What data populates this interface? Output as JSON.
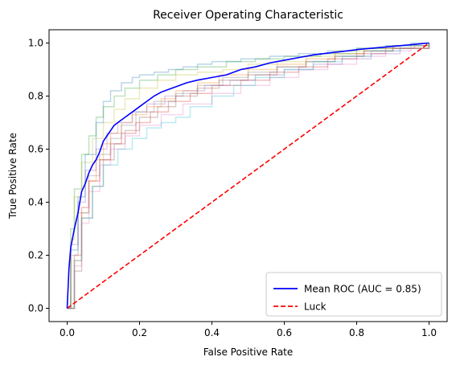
{
  "chart_data": {
    "type": "line",
    "title": "Receiver Operating Characteristic",
    "xlabel": "False Positive Rate",
    "ylabel": "True Positive Rate",
    "xlim": [
      -0.05,
      1.05
    ],
    "ylim": [
      -0.05,
      1.05
    ],
    "x_ticks": [
      0.0,
      0.2,
      0.4,
      0.6,
      0.8,
      1.0
    ],
    "y_ticks": [
      0.0,
      0.2,
      0.4,
      0.6,
      0.8,
      1.0
    ],
    "x_tick_labels": [
      "0.0",
      "0.2",
      "0.4",
      "0.6",
      "0.8",
      "1.0"
    ],
    "y_tick_labels": [
      "0.0",
      "0.2",
      "0.4",
      "0.6",
      "0.8",
      "1.0"
    ],
    "grid": false,
    "legend_position": "lower right",
    "series": [
      {
        "name": "Mean ROC (AUC = 0.85)",
        "color": "#0000ff",
        "style": "solid",
        "x": [
          0.0,
          0.005,
          0.01,
          0.02,
          0.03,
          0.04,
          0.05,
          0.06,
          0.07,
          0.08,
          0.09,
          0.1,
          0.11,
          0.12,
          0.13,
          0.14,
          0.16,
          0.18,
          0.2,
          0.22,
          0.24,
          0.26,
          0.28,
          0.3,
          0.33,
          0.36,
          0.4,
          0.44,
          0.48,
          0.52,
          0.56,
          0.6,
          0.64,
          0.68,
          0.72,
          0.76,
          0.8,
          0.84,
          0.88,
          0.92,
          0.96,
          1.0
        ],
        "y": [
          0.0,
          0.15,
          0.23,
          0.3,
          0.36,
          0.44,
          0.47,
          0.51,
          0.54,
          0.56,
          0.59,
          0.63,
          0.65,
          0.67,
          0.69,
          0.7,
          0.72,
          0.74,
          0.76,
          0.78,
          0.8,
          0.815,
          0.825,
          0.835,
          0.85,
          0.86,
          0.87,
          0.88,
          0.9,
          0.91,
          0.925,
          0.935,
          0.945,
          0.955,
          0.962,
          0.968,
          0.975,
          0.98,
          0.985,
          0.99,
          0.995,
          1.0
        ]
      },
      {
        "name": "Luck",
        "color": "#ff0000",
        "style": "dashed",
        "x": [
          0.0,
          1.0
        ],
        "y": [
          0.0,
          1.0
        ]
      }
    ],
    "background_series": [
      {
        "color": "#1f77b4",
        "x": [
          0.0,
          0.01,
          0.03,
          0.05,
          0.08,
          0.1,
          0.12,
          0.15,
          0.18,
          0.2,
          0.24,
          0.28,
          0.32,
          0.36,
          0.4,
          0.48,
          0.56,
          0.64,
          0.72,
          0.8,
          0.88,
          0.95,
          1.0
        ],
        "y": [
          0.0,
          0.22,
          0.42,
          0.58,
          0.7,
          0.78,
          0.82,
          0.85,
          0.87,
          0.88,
          0.89,
          0.9,
          0.91,
          0.92,
          0.93,
          0.94,
          0.95,
          0.96,
          0.97,
          0.98,
          0.99,
          1.0,
          1.0
        ]
      },
      {
        "color": "#ff7f0e",
        "x": [
          0.0,
          0.02,
          0.04,
          0.06,
          0.08,
          0.1,
          0.12,
          0.15,
          0.18,
          0.22,
          0.26,
          0.3,
          0.36,
          0.42,
          0.5,
          0.58,
          0.66,
          0.74,
          0.82,
          0.9,
          1.0
        ],
        "y": [
          0.0,
          0.18,
          0.36,
          0.48,
          0.56,
          0.62,
          0.66,
          0.7,
          0.73,
          0.76,
          0.79,
          0.82,
          0.85,
          0.88,
          0.9,
          0.92,
          0.94,
          0.96,
          0.97,
          0.98,
          1.0
        ]
      },
      {
        "color": "#2ca02c",
        "x": [
          0.0,
          0.01,
          0.02,
          0.04,
          0.06,
          0.08,
          0.1,
          0.13,
          0.16,
          0.2,
          0.25,
          0.3,
          0.36,
          0.44,
          0.52,
          0.6,
          0.7,
          0.8,
          0.9,
          1.0
        ],
        "y": [
          0.0,
          0.3,
          0.45,
          0.58,
          0.65,
          0.72,
          0.76,
          0.8,
          0.83,
          0.86,
          0.88,
          0.9,
          0.91,
          0.93,
          0.94,
          0.95,
          0.96,
          0.98,
          0.99,
          1.0
        ]
      },
      {
        "color": "#d62728",
        "x": [
          0.0,
          0.02,
          0.04,
          0.06,
          0.09,
          0.12,
          0.15,
          0.19,
          0.23,
          0.28,
          0.34,
          0.4,
          0.48,
          0.56,
          0.64,
          0.72,
          0.8,
          0.88,
          0.96,
          1.0
        ],
        "y": [
          0.0,
          0.2,
          0.38,
          0.48,
          0.56,
          0.62,
          0.66,
          0.7,
          0.74,
          0.78,
          0.81,
          0.84,
          0.86,
          0.89,
          0.91,
          0.94,
          0.96,
          0.98,
          0.99,
          1.0
        ]
      },
      {
        "color": "#9467bd",
        "x": [
          0.0,
          0.01,
          0.03,
          0.05,
          0.08,
          0.11,
          0.14,
          0.18,
          0.22,
          0.27,
          0.32,
          0.38,
          0.45,
          0.52,
          0.6,
          0.68,
          0.76,
          0.84,
          0.92,
          1.0
        ],
        "y": [
          0.0,
          0.24,
          0.4,
          0.52,
          0.6,
          0.66,
          0.7,
          0.74,
          0.77,
          0.8,
          0.82,
          0.84,
          0.86,
          0.88,
          0.9,
          0.92,
          0.94,
          0.96,
          0.98,
          1.0
        ]
      },
      {
        "color": "#8c564b",
        "x": [
          0.0,
          0.02,
          0.04,
          0.07,
          0.1,
          0.13,
          0.16,
          0.2,
          0.25,
          0.3,
          0.36,
          0.42,
          0.5,
          0.58,
          0.66,
          0.74,
          0.82,
          0.9,
          1.0
        ],
        "y": [
          0.0,
          0.14,
          0.34,
          0.46,
          0.56,
          0.62,
          0.67,
          0.72,
          0.76,
          0.8,
          0.83,
          0.86,
          0.88,
          0.91,
          0.93,
          0.95,
          0.97,
          0.98,
          1.0
        ]
      },
      {
        "color": "#e377c2",
        "x": [
          0.0,
          0.02,
          0.04,
          0.06,
          0.09,
          0.12,
          0.16,
          0.2,
          0.26,
          0.32,
          0.4,
          0.48,
          0.56,
          0.64,
          0.72,
          0.8,
          0.88,
          0.95,
          1.0
        ],
        "y": [
          0.0,
          0.16,
          0.32,
          0.44,
          0.54,
          0.6,
          0.65,
          0.69,
          0.73,
          0.77,
          0.81,
          0.84,
          0.87,
          0.9,
          0.92,
          0.95,
          0.97,
          0.99,
          1.0
        ]
      },
      {
        "color": "#7f7f7f",
        "x": [
          0.0,
          0.01,
          0.03,
          0.06,
          0.09,
          0.12,
          0.15,
          0.19,
          0.24,
          0.3,
          0.36,
          0.43,
          0.5,
          0.58,
          0.66,
          0.74,
          0.82,
          0.9,
          1.0
        ],
        "y": [
          0.0,
          0.2,
          0.36,
          0.5,
          0.58,
          0.64,
          0.69,
          0.74,
          0.78,
          0.81,
          0.84,
          0.87,
          0.89,
          0.91,
          0.93,
          0.95,
          0.97,
          0.98,
          1.0
        ]
      },
      {
        "color": "#bcbd22",
        "x": [
          0.0,
          0.01,
          0.02,
          0.04,
          0.07,
          0.1,
          0.13,
          0.16,
          0.2,
          0.25,
          0.3,
          0.36,
          0.43,
          0.5,
          0.58,
          0.66,
          0.74,
          0.82,
          0.9,
          1.0
        ],
        "y": [
          0.0,
          0.26,
          0.42,
          0.55,
          0.64,
          0.7,
          0.75,
          0.79,
          0.83,
          0.86,
          0.88,
          0.89,
          0.9,
          0.92,
          0.93,
          0.95,
          0.97,
          0.98,
          0.99,
          1.0
        ]
      },
      {
        "color": "#17becf",
        "x": [
          0.0,
          0.02,
          0.04,
          0.07,
          0.1,
          0.14,
          0.18,
          0.22,
          0.26,
          0.3,
          0.34,
          0.4,
          0.46,
          0.52,
          0.6,
          0.68,
          0.76,
          0.84,
          0.92,
          1.0
        ],
        "y": [
          0.0,
          0.18,
          0.34,
          0.46,
          0.54,
          0.6,
          0.64,
          0.68,
          0.7,
          0.72,
          0.76,
          0.8,
          0.84,
          0.87,
          0.9,
          0.93,
          0.95,
          0.97,
          0.99,
          1.0
        ]
      }
    ]
  }
}
